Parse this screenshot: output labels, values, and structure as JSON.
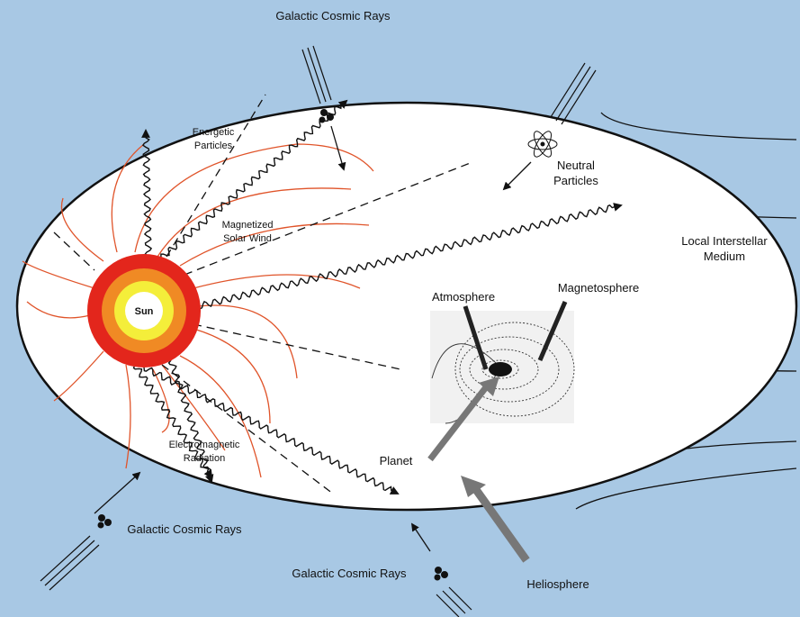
{
  "labels": [
    {
      "lines": [
        "Galactic Cosmic Rays"
      ]
    },
    {
      "lines": [
        "Energetic",
        "Particles"
      ]
    },
    {
      "lines": [
        "Neutral",
        "Particles"
      ]
    },
    {
      "lines": [
        "Magnetized",
        "Solar Wind"
      ]
    },
    {
      "lines": [
        "Local Interstellar",
        "Medium"
      ]
    },
    {
      "lines": [
        "Sun"
      ]
    },
    {
      "lines": [
        "Atmosphere"
      ]
    },
    {
      "lines": [
        "Magnetosphere"
      ]
    },
    {
      "lines": [
        "Planet"
      ]
    },
    {
      "lines": [
        "Electromagnetic",
        "Radiation"
      ]
    },
    {
      "lines": [
        "Galactic Cosmic Rays"
      ]
    },
    {
      "lines": [
        "Galactic Cosmic Rays"
      ]
    },
    {
      "lines": [
        "Heliosphere"
      ]
    }
  ]
}
